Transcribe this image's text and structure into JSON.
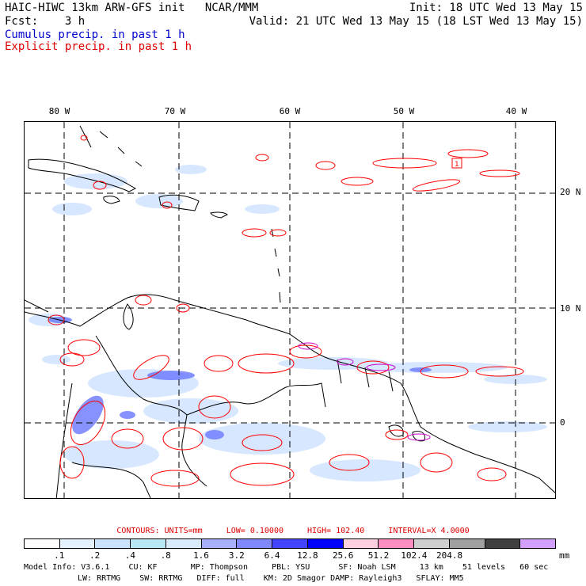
{
  "header": {
    "model_line": "HAIC-HIWC 13km ARW-GFS init   NCAR/MMM",
    "fcst_line": "Fcst:    3 h",
    "init_line": "Init: 18 UTC Wed 13 May 15",
    "valid_line": "Valid: 21 UTC Wed 13 May 15 (18 LST Wed 13 May 15)"
  },
  "legend": {
    "cumulus": "Cumulus precip. in past 1 h",
    "explicit": "Explicit precip. in past 1 h"
  },
  "map": {
    "lon_labels": [
      "80 W",
      "70 W",
      "60 W",
      "50 W",
      "40 W"
    ],
    "lat_labels": [
      "20 N",
      "10 N",
      "0"
    ],
    "station_label": "1",
    "colors": {
      "coast": "#000000",
      "explicit": "#ff0000",
      "grid": "#000000"
    }
  },
  "contours": {
    "label": "CONTOURS:  UNITS=mm",
    "low": "LOW=  0.10000",
    "high": "HIGH=  102.40",
    "interval": "INTERVAL=X  4.0000"
  },
  "colorbar": {
    "swatches": [
      "#ffffff",
      "#e4f1ff",
      "#cce3ff",
      "#b8e8f3",
      "#d9ecfe",
      "#a6b0ff",
      "#8088ff",
      "#4444ff",
      "#0000ff",
      "#ffd0e0",
      "#ff8fc0",
      "#d0d0d0",
      "#a0a0a0",
      "#404040",
      "#d4a0ff"
    ],
    "ticks": [
      ".1",
      ".2",
      ".4",
      ".8",
      "1.6",
      "3.2",
      "6.4",
      "12.8",
      "25.6",
      "51.2",
      "102.4",
      "204.8"
    ],
    "unit": "mm"
  },
  "model_info": {
    "line1": "Model Info: V3.6.1    CU: KF       MP: Thompson     PBL: YSU      SF: Noah LSM     13 km    51 levels   60 sec",
    "line2": "LW: RRTMG    SW: RRTMG   DIFF: full    KM: 2D Smagor DAMP: Rayleigh3   SFLAY: MM5"
  }
}
